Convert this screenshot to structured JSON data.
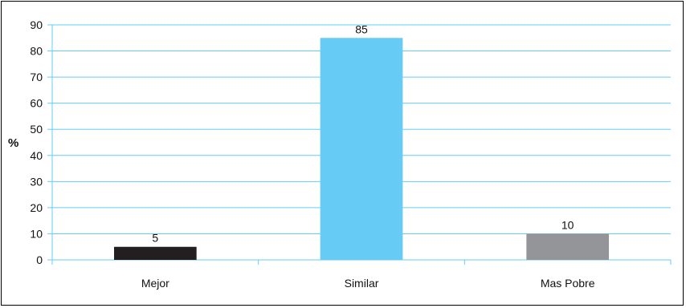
{
  "chart_data": {
    "type": "bar",
    "title": "",
    "xlabel": "",
    "ylabel": "%",
    "ylim": [
      0,
      90
    ],
    "yticks": [
      0,
      10,
      20,
      30,
      40,
      50,
      60,
      70,
      80,
      90
    ],
    "categories": [
      "Mejor",
      "Similar",
      "Mas Pobre"
    ],
    "values": [
      5,
      85,
      10
    ],
    "data_labels": [
      "5",
      "85",
      "10"
    ],
    "bar_colors": [
      "#231f20",
      "#66ccf5",
      "#939598"
    ],
    "grid": true,
    "grid_color": "#66ccf5",
    "legend": "none"
  }
}
